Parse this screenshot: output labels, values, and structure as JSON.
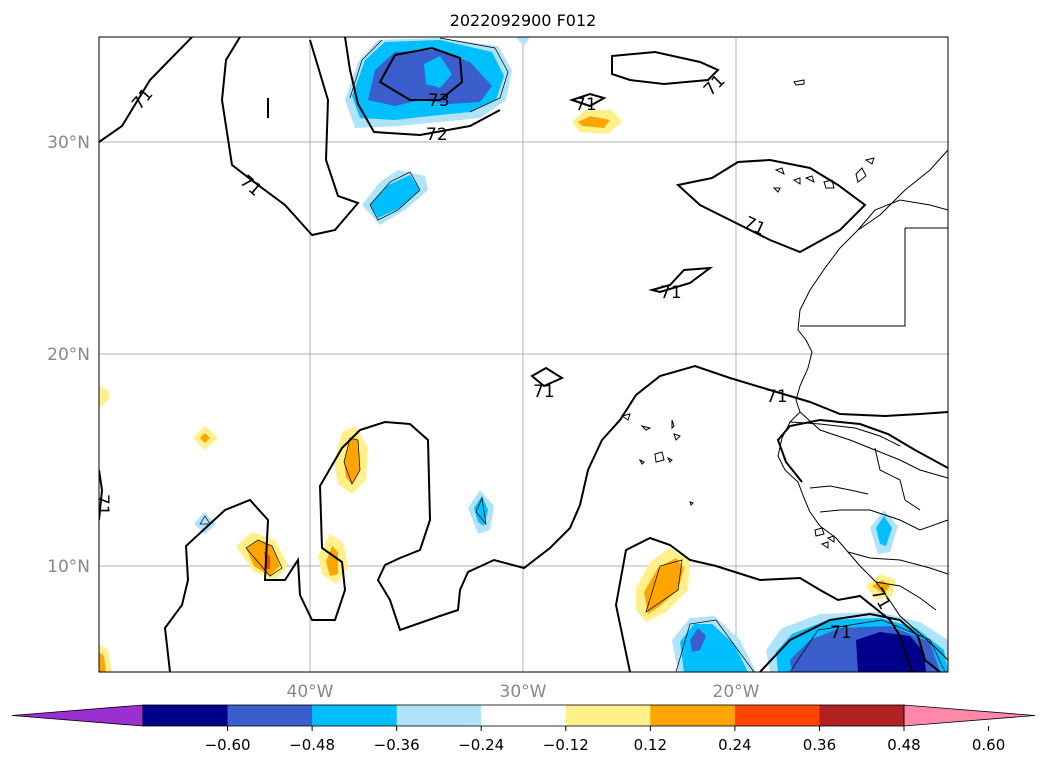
{
  "title": "2022092900 F012",
  "lat_labels": [
    "30°N",
    "20°N",
    "10°N"
  ],
  "lon_labels": [
    "40°W",
    "30°W",
    "20°W"
  ],
  "contour_labels": [
    "71",
    "71",
    "71",
    "71",
    "71",
    "71",
    "71",
    "71",
    "72",
    "73",
    "71",
    "71",
    "71",
    "71"
  ],
  "colorbar": {
    "tick_labels": [
      "−0.60",
      "−0.48",
      "−0.36",
      "−0.24",
      "−0.12",
      "0.12",
      "0.24",
      "0.36",
      "0.48",
      "0.60"
    ],
    "colors": [
      "#9b30d0",
      "#00008b",
      "#3a5fcd",
      "#00bfff",
      "#afe3fa",
      "#ffffff",
      "#fff08a",
      "#ffa500",
      "#ff4500",
      "#b22222",
      "#ff88aa"
    ]
  }
}
